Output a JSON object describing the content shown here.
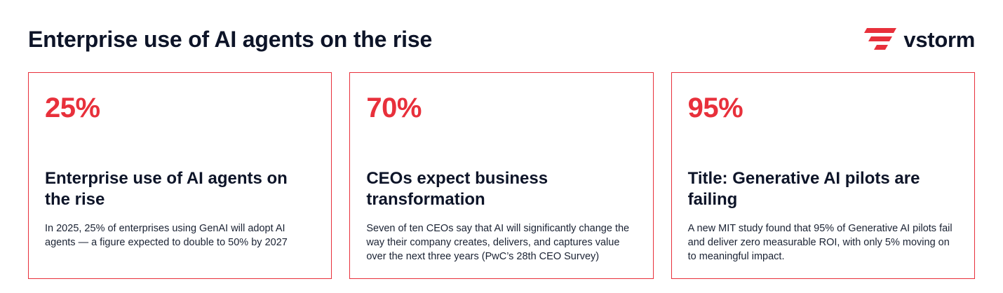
{
  "header": {
    "title": "Enterprise use of AI agents on the rise",
    "brand": {
      "name": "vstorm",
      "logo_icon": "vstorm-logo-icon",
      "logo_color": "#e8303b"
    }
  },
  "colors": {
    "accent": "#e8303b",
    "text": "#0d1428"
  },
  "cards": [
    {
      "stat": "25%",
      "heading": "Enterprise use of AI agents on the rise",
      "text": "In 2025, 25% of enterprises using GenAI will adopt AI agents — a figure expected to double to 50% by 2027"
    },
    {
      "stat": "70%",
      "heading": "CEOs expect business transformation",
      "text": "Seven of ten CEOs say that AI will significantly change the way their company creates, delivers, and captures value over the next three years (PwC’s 28th CEO Survey)"
    },
    {
      "stat": "95%",
      "heading": "Title: Generative AI pilots are failing",
      "text": "A new MIT study found that 95% of Generative AI pilots fail and deliver zero measurable ROI, with only 5% moving on to meaningful impact."
    }
  ]
}
